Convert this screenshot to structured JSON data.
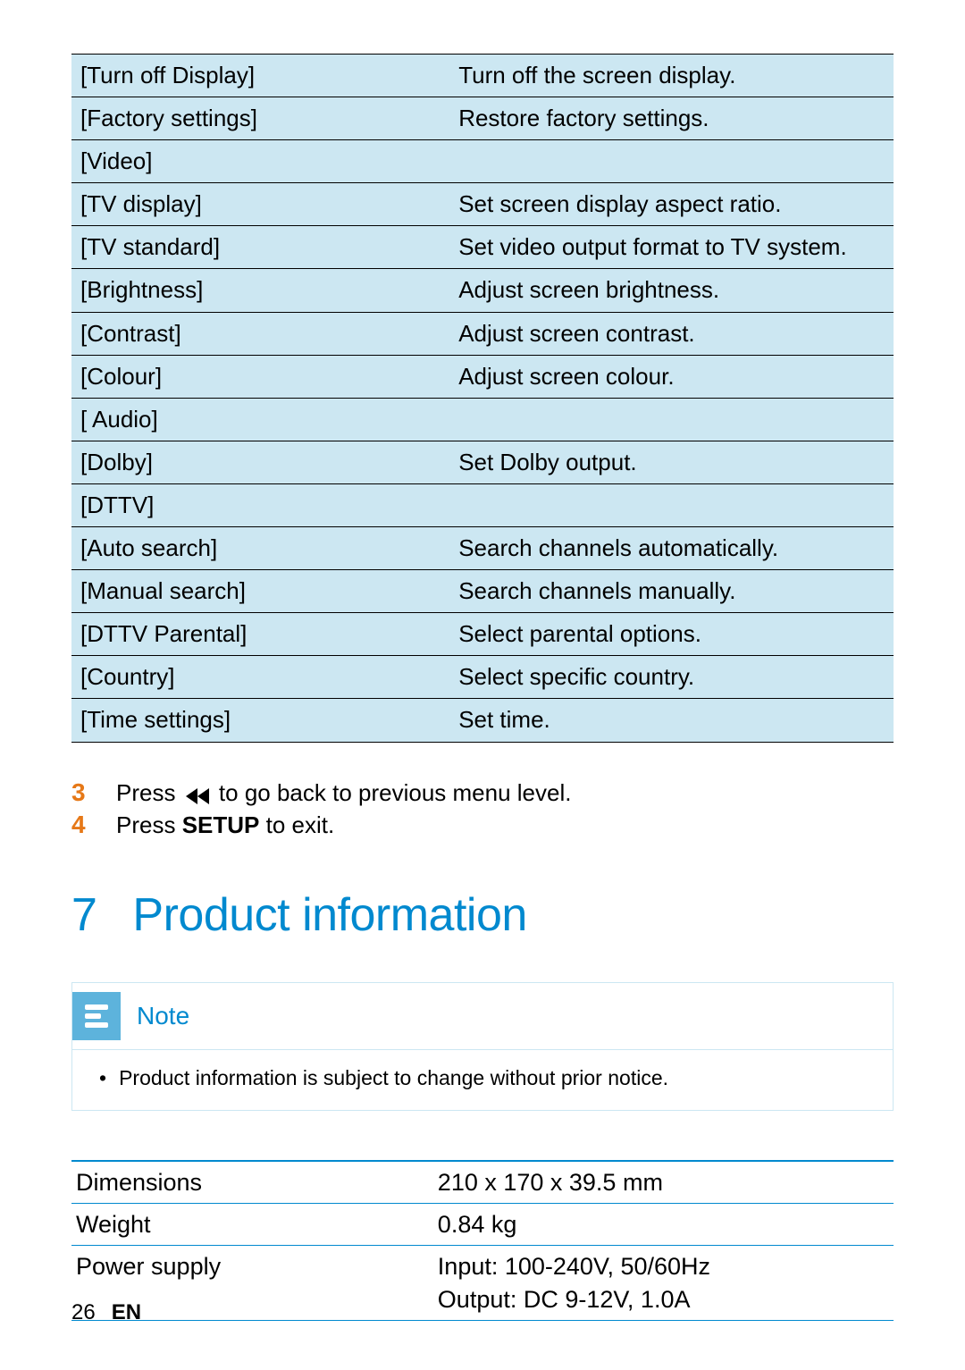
{
  "colors": {
    "tableBg": "#cce7f2",
    "accentBlue": "#0089cf",
    "noteIconBg": "#5db3dc",
    "stepNumber": "#e67817",
    "borderDark": "#000000"
  },
  "settingsTable": {
    "rows": [
      {
        "label": "[Turn off Display]",
        "desc": "Turn off the screen display."
      },
      {
        "label": "[Factory settings]",
        "desc": "Restore factory settings."
      },
      {
        "label": "[Video]",
        "desc": ""
      },
      {
        "label": "[TV display]",
        "desc": "Set screen display aspect ratio."
      },
      {
        "label": "[TV standard]",
        "desc": "Set video output format to TV system."
      },
      {
        "label": "[Brightness]",
        "desc": "Adjust screen brightness."
      },
      {
        "label": "[Contrast]",
        "desc": "Adjust screen contrast."
      },
      {
        "label": "[Colour]",
        "desc": "Adjust screen colour."
      },
      {
        "label": "[ Audio]",
        "desc": ""
      },
      {
        "label": "[Dolby]",
        "desc": "Set Dolby output."
      },
      {
        "label": "[DTTV]",
        "desc": ""
      },
      {
        "label": "[Auto search]",
        "desc": "Search channels automatically."
      },
      {
        "label": "[Manual search]",
        "desc": "Search channels manually."
      },
      {
        "label": "[DTTV Parental]",
        "desc": "Select parental options."
      },
      {
        "label": "[Country]",
        "desc": "Select specific country."
      },
      {
        "label": "[Time settings]",
        "desc": "Set time."
      }
    ]
  },
  "steps": {
    "step3": {
      "num": "3",
      "prefix": "Press ",
      "suffix": " to go back to previous menu level."
    },
    "step4": {
      "num": "4",
      "prefix": "Press ",
      "bold": "SETUP",
      "suffix": " to exit."
    }
  },
  "section": {
    "number": "7",
    "title": "Product information"
  },
  "note": {
    "label": "Note",
    "bullet": "Product information is subject to change without prior notice."
  },
  "specTable": {
    "rows": [
      {
        "label": "Dimensions",
        "value": "210 x 170 x 39.5 mm"
      },
      {
        "label": "Weight",
        "value": "0.84 kg"
      },
      {
        "label": "Power supply",
        "value": "Input: 100-240V, 50/60Hz\nOutput: DC 9-12V, 1.0A"
      }
    ]
  },
  "footer": {
    "page": "26",
    "lang": "EN"
  }
}
